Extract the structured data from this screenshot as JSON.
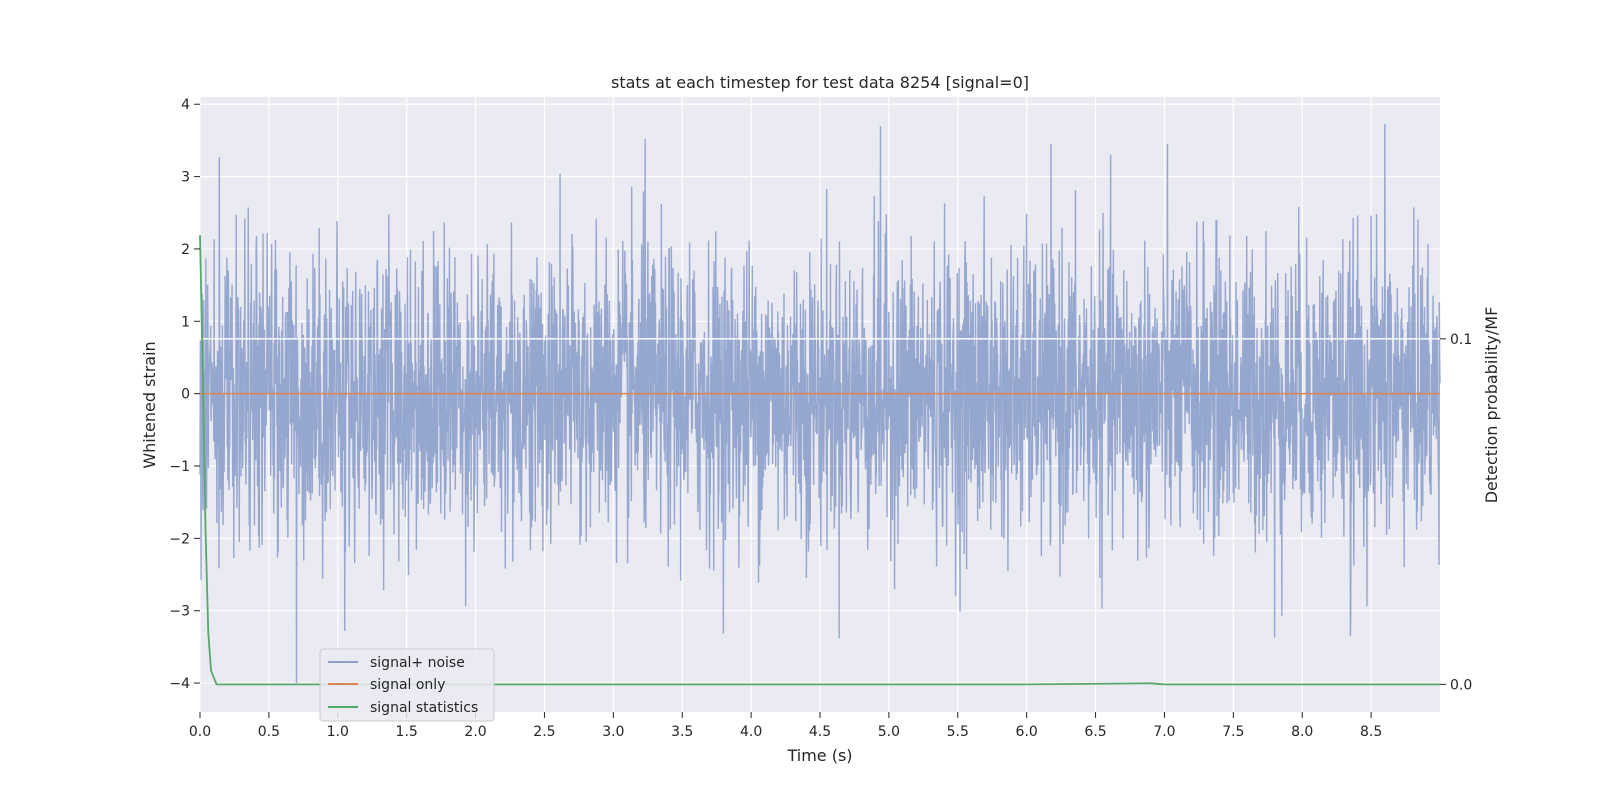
{
  "chart_data": {
    "type": "line",
    "title": "stats at each timestep for test data 8254 [signal=0]",
    "xlabel": "Time (s)",
    "ylabel": "Whitened strain",
    "ylabel_right": "Detection probability/MF",
    "xlim": [
      0.0,
      9.0
    ],
    "ylim": [
      -4.4,
      4.1
    ],
    "ylim_right": [
      -0.008,
      0.17
    ],
    "x_ticks": [
      "0.0",
      "0.5",
      "1.0",
      "1.5",
      "2.0",
      "2.5",
      "3.0",
      "3.5",
      "4.0",
      "4.5",
      "5.0",
      "5.5",
      "6.0",
      "6.5",
      "7.0",
      "7.5",
      "8.0",
      "8.5"
    ],
    "y_ticks": [
      "4",
      "3",
      "2",
      "1",
      "0",
      "−1",
      "−2",
      "−3",
      "−4"
    ],
    "y_ticks_right": [
      "0.1",
      "0.0"
    ],
    "grid": true,
    "legend_position": "lower-left",
    "series": [
      {
        "name": "signal+ noise",
        "color": "#8da0cb",
        "description_stats": {
          "mean": 0.0,
          "std": 1.0,
          "min": -4.0,
          "max": 3.75
        },
        "notable_peaks": [
          {
            "x": 0.14,
            "y": 3.27
          },
          {
            "x": 3.23,
            "y": 3.52
          },
          {
            "x": 4.94,
            "y": 3.7
          },
          {
            "x": 8.6,
            "y": 3.73
          },
          {
            "x": 0.7,
            "y": -4.0
          },
          {
            "x": 7.8,
            "y": -3.37
          },
          {
            "x": 8.35,
            "y": -3.35
          },
          {
            "x": 1.05,
            "y": -3.28
          }
        ]
      },
      {
        "name": "signal only",
        "color": "#dd8452",
        "x": [
          0.0,
          9.0
        ],
        "y": [
          0.0,
          0.0
        ]
      },
      {
        "name": "signal statistics",
        "color": "#55a868",
        "axis": "right",
        "x": [
          0.0,
          0.02,
          0.04,
          0.06,
          0.08,
          0.12,
          1.0,
          2.0,
          3.0,
          4.0,
          5.0,
          6.0,
          6.9,
          7.0,
          8.0,
          9.0
        ],
        "y": [
          0.13,
          0.09,
          0.045,
          0.015,
          0.004,
          0.0,
          0.0,
          0.0,
          0.0,
          0.0,
          0.0,
          0.0,
          0.0003,
          0.0,
          0.0,
          0.0
        ]
      }
    ],
    "hline_right": {
      "y": 0.1,
      "color": "#ffffff"
    }
  }
}
